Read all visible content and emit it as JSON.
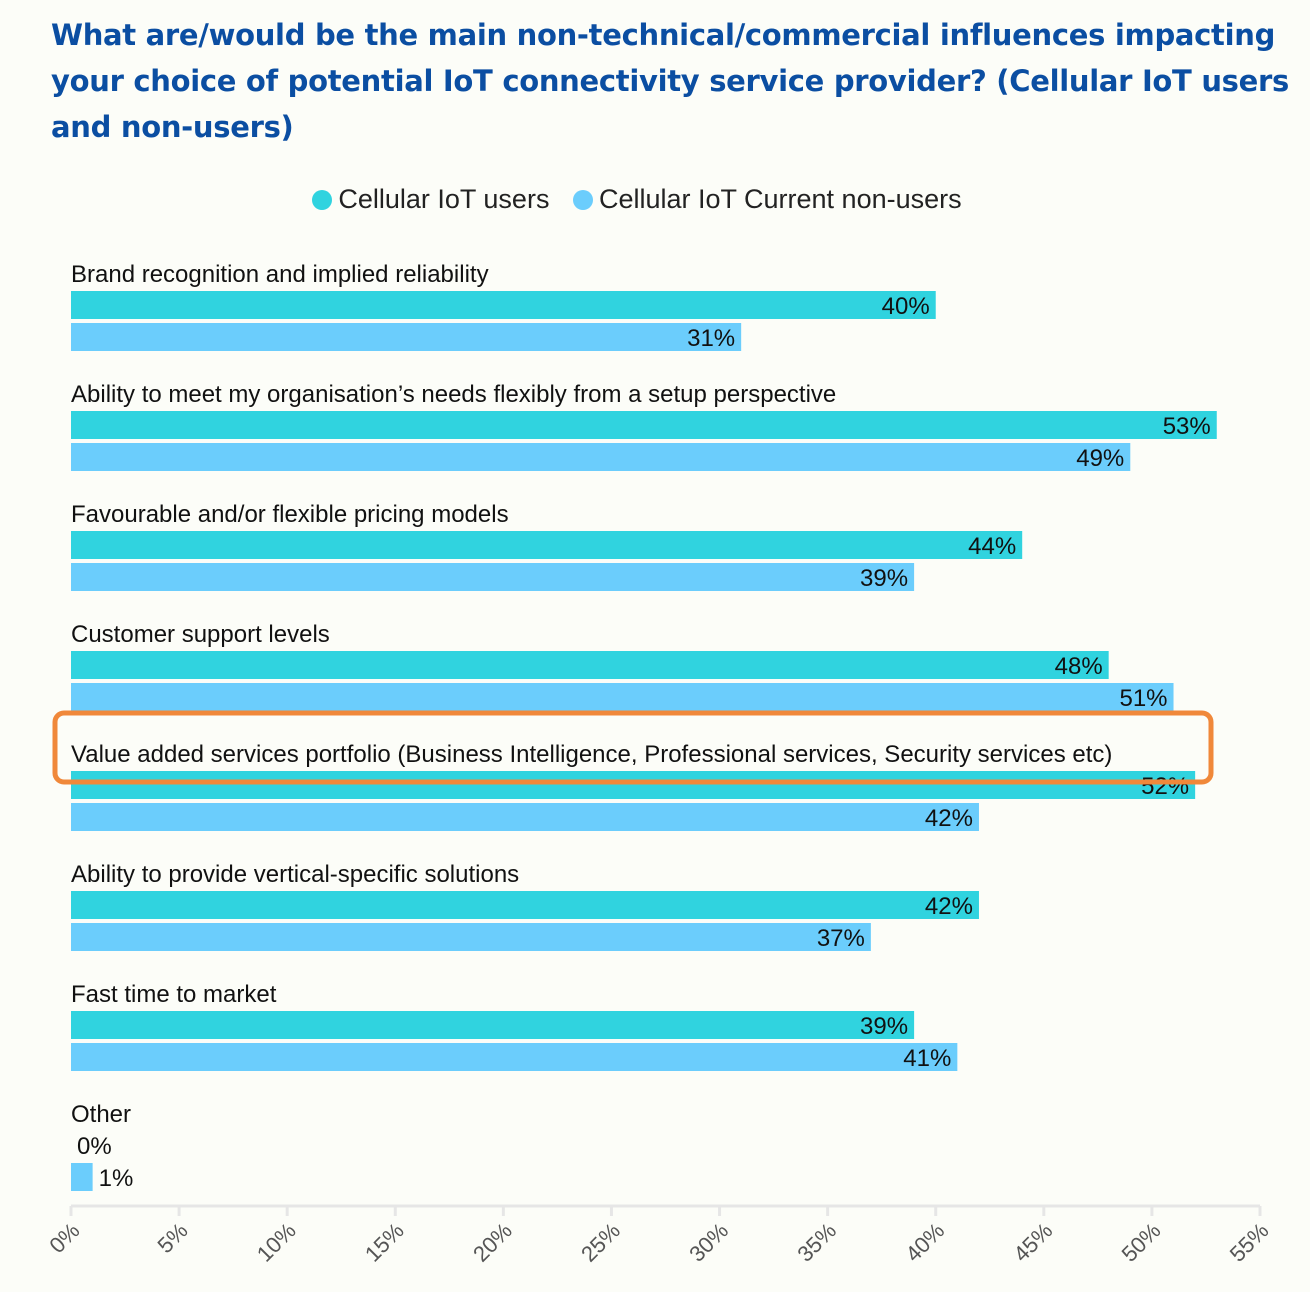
{
  "title": "What are/would be the main non-technical/commercial influences impacting your choice of potential IoT connectivity service provider? (Cellular IoT users and non-users)",
  "chart_data": {
    "type": "bar",
    "orientation": "horizontal",
    "title": "What are/would be the main non-technical/commercial influences impacting your choice of potential IoT connectivity service provider? (Cellular IoT users and non-users)",
    "categories": [
      "Brand recognition and implied reliability",
      "Ability to meet my organisation’s needs flexibly from a setup perspective",
      "Favourable and/or flexible pricing models",
      "Customer support levels",
      "Value added services portfolio (Business Intelligence, Professional services, Security services etc)",
      "Ability to provide vertical-specific solutions",
      "Fast time to market",
      "Other"
    ],
    "series": [
      {
        "name": "Cellular IoT users",
        "color": "#30d3df",
        "values": [
          40,
          53,
          44,
          48,
          52,
          42,
          39,
          0
        ]
      },
      {
        "name": "Cellular IoT Current non-users",
        "color": "#6bcdfc",
        "values": [
          31,
          49,
          39,
          51,
          42,
          37,
          41,
          1
        ]
      }
    ],
    "xlim": [
      0,
      55
    ],
    "xticks": [
      "0%",
      "5%",
      "10%",
      "15%",
      "20%",
      "25%",
      "30%",
      "35%",
      "40%",
      "45%",
      "50%",
      "55%"
    ],
    "legend": "top-center",
    "highlight": {
      "category": "Value added services portfolio (Business Intelligence, Professional services, Security services etc)",
      "series": "Cellular IoT users",
      "color": "#f0883a"
    }
  }
}
